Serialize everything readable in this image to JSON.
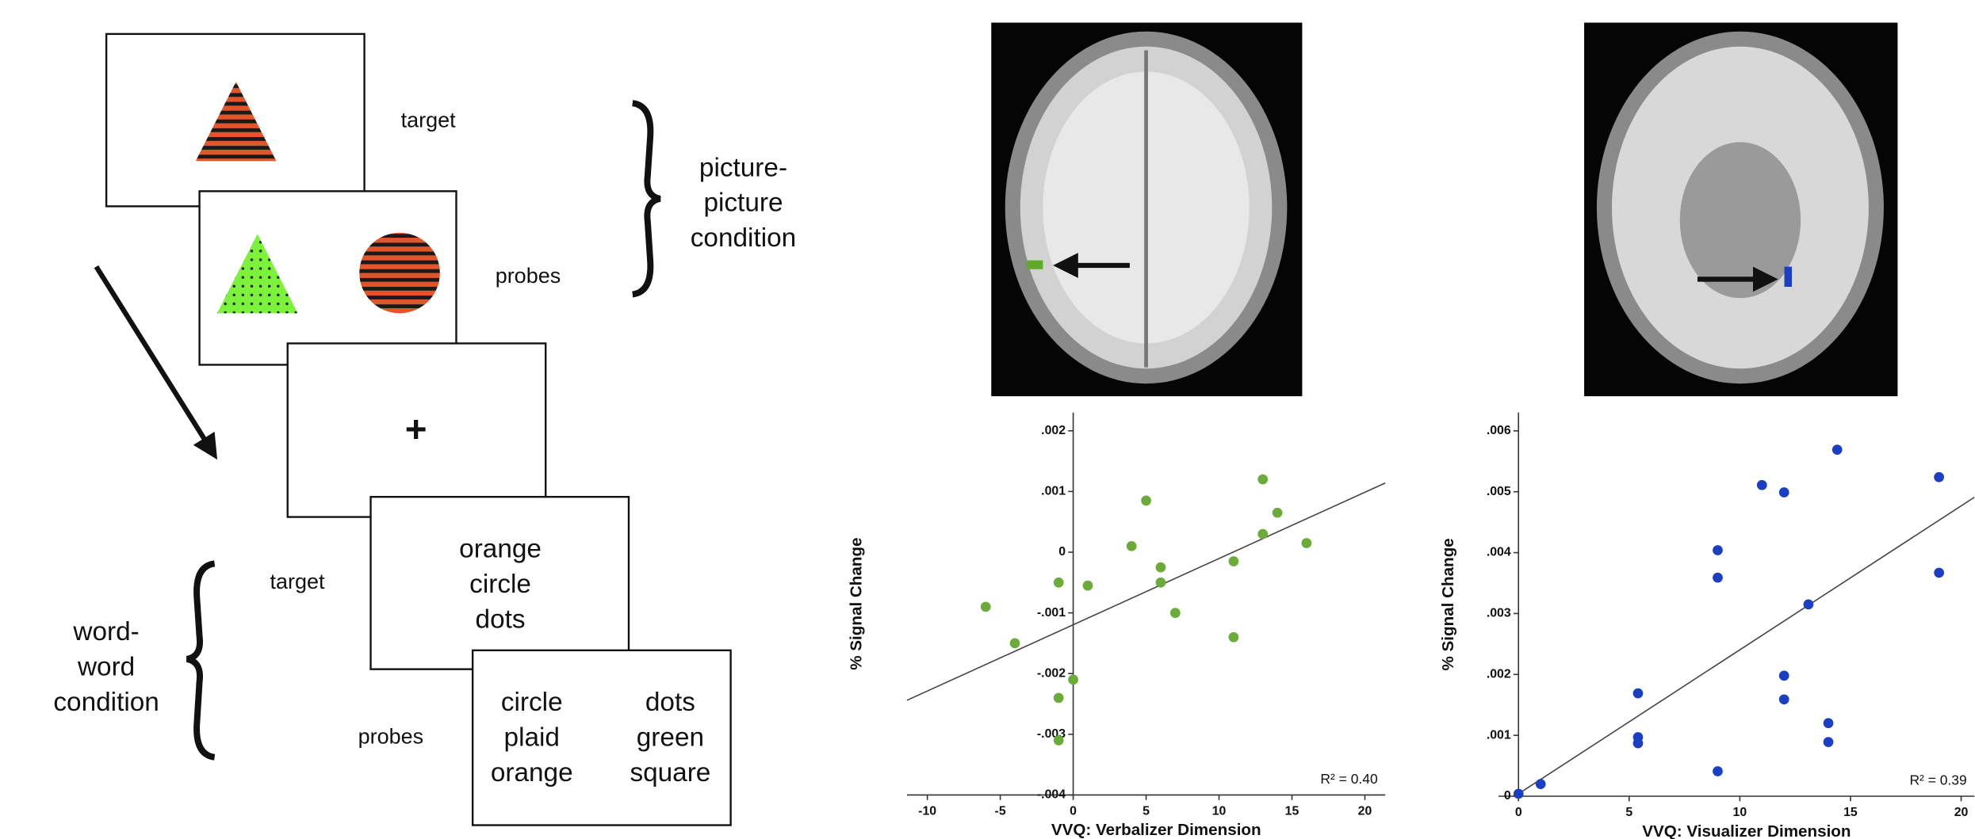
{
  "diagram": {
    "picture_block": {
      "target_label": "target",
      "probes_label": "probes",
      "condition": [
        "picture-",
        "picture",
        "condition"
      ]
    },
    "fixation": "+",
    "word_block": {
      "target_label": "target",
      "target_words": [
        "orange",
        "circle",
        "dots"
      ],
      "probes_label": "probes",
      "probe_left": [
        "circle",
        "plaid",
        "orange"
      ],
      "probe_right": [
        "dots",
        "green",
        "square"
      ],
      "condition": [
        "word-",
        "word",
        "condition"
      ]
    }
  },
  "chart_data": [
    {
      "type": "scatter",
      "color": "#6aab3a",
      "x_label": "VVQ: Verbalizer Dimension",
      "y_label": "% Signal Change",
      "annotation": "R² = 0.40",
      "x": [
        -6,
        -4,
        -1,
        1,
        0,
        -1,
        -1,
        4,
        5,
        6,
        6,
        7,
        11,
        11,
        13,
        13,
        14,
        16
      ],
      "values": [
        -0.0009,
        -0.0015,
        -0.0005,
        -0.00055,
        -0.0021,
        -0.0024,
        -0.0031,
        0.0001,
        0.00085,
        -0.00025,
        -0.0005,
        -0.001,
        -0.00015,
        -0.0014,
        0.0012,
        0.0003,
        0.00065,
        0.00015
      ],
      "fit": {
        "x": [
          -11.4,
          21.4
        ],
        "y": [
          -0.00244,
          0.00114
        ]
      },
      "xlim": [
        -11.4,
        21.4
      ],
      "xticks": [
        -10,
        -5,
        0,
        5,
        10,
        15,
        20
      ],
      "ylim": [
        -0.004,
        0.0023
      ],
      "yticks": [
        {
          "value": -0.004,
          "label": "-.004"
        },
        {
          "value": -0.003,
          "label": "-.003"
        },
        {
          "value": -0.002,
          "label": "-.002"
        },
        {
          "value": -0.001,
          "label": "-.001"
        },
        0,
        {
          "value": 0.001,
          "label": ".001"
        },
        {
          "value": 0.002,
          "label": ".002"
        }
      ]
    },
    {
      "type": "scatter",
      "color": "#1b3fc4",
      "x_label": "VVQ: Visualizer Dimension",
      "y_label": "% Signal Change",
      "annotation": "R² = 0.39",
      "x": [
        0,
        1,
        5.4,
        5.4,
        5.4,
        9,
        9,
        9,
        11,
        12,
        12,
        12,
        13.1,
        14,
        14,
        14.4,
        19,
        19
      ],
      "values": [
        4e-05,
        0.0002,
        0.00169,
        0.00097,
        0.00087,
        0.00404,
        0.00359,
        0.00041,
        0.00511,
        0.00499,
        0.00198,
        0.00159,
        0.00315,
        0.0012,
        0.00089,
        0.00569,
        0.00524,
        0.00367
      ],
      "fit": {
        "x": [
          0,
          20.6
        ],
        "y": [
          4e-05,
          0.00491
        ]
      },
      "xlim": [
        -0.9,
        20.6
      ],
      "xticks": [
        0,
        5,
        10,
        15,
        20
      ],
      "ylim": [
        0,
        0.0063
      ],
      "yticks": [
        0,
        {
          "value": 0.001,
          "label": ".001"
        },
        {
          "value": 0.002,
          "label": ".002"
        },
        {
          "value": 0.003,
          "label": ".003"
        },
        {
          "value": 0.004,
          "label": ".004"
        },
        {
          "value": 0.005,
          "label": ".005"
        },
        {
          "value": 0.006,
          "label": ".006"
        }
      ]
    }
  ]
}
